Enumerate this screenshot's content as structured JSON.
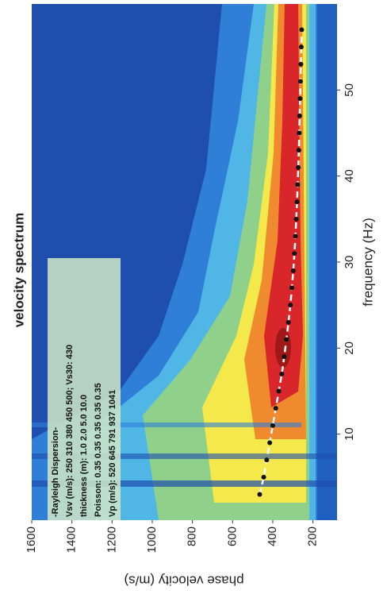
{
  "chart_data": {
    "type": "line",
    "title": "velocity spectrum",
    "xlabel": "frequency (Hz)",
    "ylabel": "phase velocity (m/s)",
    "annotation": [
      "-Rayleigh Dispersion-",
      "Vsv (m/s): 250  310  380  450  500;  Vs30: 430",
      "thickness (m): 1.0    2.0    5.0    10.0",
      "Poisson: 0.35  0.35  0.35  0.35  0.35",
      "Vp (m/s): 520  645  791  937  1041"
    ],
    "x": [
      3,
      5,
      7,
      9,
      11,
      13,
      15,
      17,
      19,
      21,
      23,
      25,
      27,
      29,
      31,
      33,
      35,
      37,
      39,
      41,
      43,
      45,
      47,
      49,
      51,
      53,
      55,
      57
    ],
    "values": [
      465,
      445,
      430,
      415,
      400,
      385,
      370,
      355,
      343,
      332,
      322,
      312,
      305,
      298,
      292,
      287,
      283,
      279,
      276,
      273,
      270,
      268,
      266,
      264,
      262,
      260,
      258,
      256
    ],
    "color": "#111111",
    "line_color": "#ffffff",
    "xlim": [
      0,
      60
    ],
    "xticks": [
      10,
      20,
      30,
      40,
      50
    ],
    "ylim": [
      80,
      1600
    ],
    "yticks": [
      200,
      400,
      600,
      800,
      1000,
      1200,
      1400,
      1600
    ]
  }
}
